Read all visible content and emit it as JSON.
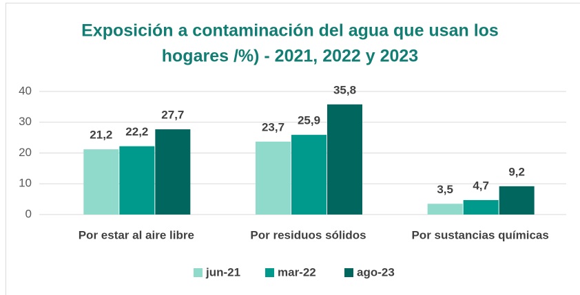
{
  "chart_data": {
    "type": "bar",
    "title": [
      "Exposición a contaminación del agua que usan los",
      "hogares /%) - 2021, 2022 y 2023"
    ],
    "categories": [
      "Por estar al aire libre",
      "Por residuos sólidos",
      "Por sustancias químicas"
    ],
    "series": [
      {
        "name": "jun-21",
        "color": "#8fdacb",
        "values": [
          21.2,
          23.7,
          3.5
        ],
        "value_labels": [
          "21,2",
          "23,7",
          "3,5"
        ]
      },
      {
        "name": "mar-22",
        "color": "#009a8c",
        "values": [
          22.2,
          25.9,
          4.7
        ],
        "value_labels": [
          "22,2",
          "25,9",
          "4,7"
        ]
      },
      {
        "name": "ago-23",
        "color": "#00665e",
        "values": [
          27.7,
          35.8,
          9.2
        ],
        "value_labels": [
          "27,7",
          "35,8",
          "9,2"
        ]
      }
    ],
    "ylim": [
      0,
      40
    ],
    "yticks": [
      0,
      10,
      20,
      30,
      40
    ],
    "grid": true,
    "legend": "bottom"
  }
}
